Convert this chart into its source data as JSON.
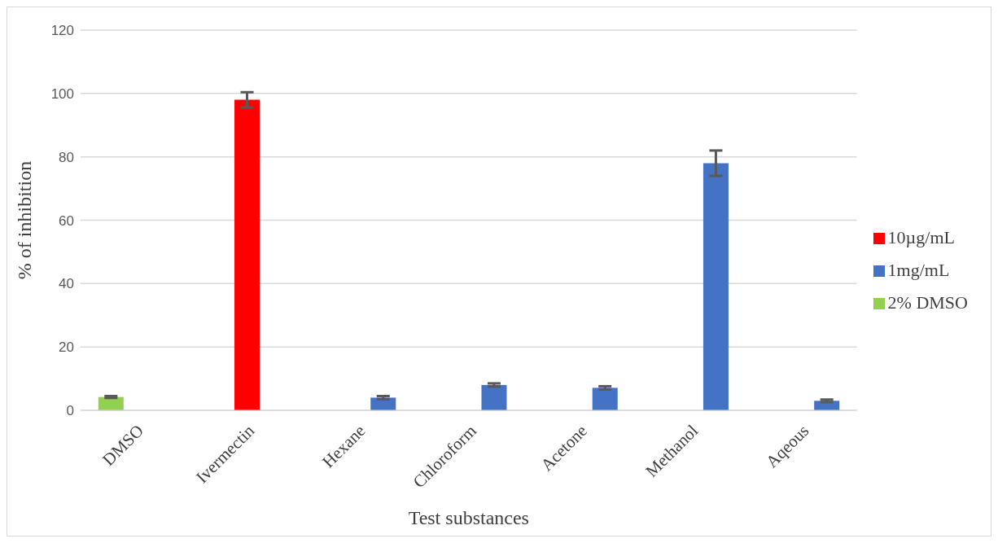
{
  "chart_data": {
    "type": "bar",
    "xlabel": "Test substances",
    "ylabel": "% of inhibition",
    "categories": [
      "DMSO",
      "Ivermectin",
      "Hexane",
      "Chloroform",
      "Acetone",
      "Methanol",
      "Aqeous"
    ],
    "series": [
      {
        "name": "2% DMSO",
        "color": "#92d050",
        "values": [
          4.2,
          null,
          null,
          null,
          null,
          null,
          null
        ],
        "errors": [
          0.3,
          null,
          null,
          null,
          null,
          null,
          null
        ]
      },
      {
        "name": "10µg/mL",
        "color": "#ff0000",
        "values": [
          null,
          98,
          null,
          null,
          null,
          null,
          null
        ],
        "errors": [
          null,
          2.4,
          null,
          null,
          null,
          null,
          null
        ]
      },
      {
        "name": "1mg/mL",
        "color": "#4472c4",
        "values": [
          null,
          null,
          4,
          8,
          7.1,
          78,
          3
        ],
        "errors": [
          null,
          null,
          0.5,
          0.5,
          0.5,
          4,
          0.4
        ]
      }
    ],
    "ylim": [
      0,
      120
    ],
    "yticks": [
      0,
      20,
      40,
      60,
      80,
      100,
      120
    ],
    "grid": "y",
    "legend": "right"
  }
}
